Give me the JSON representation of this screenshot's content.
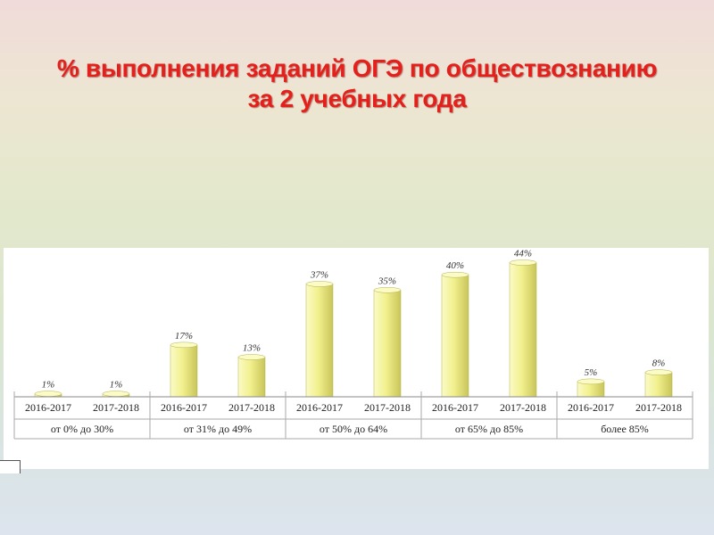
{
  "title": {
    "line1": "% выполнения заданий ОГЭ по обществознанию",
    "line2": "за 2 учебных года"
  },
  "colors": {
    "title": "#e3201b",
    "bar_light": "#fbfbc6",
    "bar_mid": "#f2f08e",
    "bar_dark": "#c9c55a"
  },
  "chart_data": {
    "type": "bar",
    "title": "% выполнения заданий ОГЭ по обществознанию за 2 учебных года",
    "groups": [
      "от 0% до 30%",
      "от 31% до 49%",
      "от 50% до 64%",
      "от 65% до 85%",
      "более 85%"
    ],
    "categories": [
      "2016-2017",
      "2017-2018",
      "2016-2017",
      "2017-2018",
      "2016-2017",
      "2017-2018",
      "2016-2017",
      "2017-2018",
      "2016-2017",
      "2017-2018"
    ],
    "values": [
      1,
      1,
      17,
      13,
      37,
      35,
      40,
      44,
      5,
      8
    ],
    "data_labels": [
      "1%",
      "1%",
      "17%",
      "13%",
      "37%",
      "35%",
      "40%",
      "44%",
      "5%",
      "8%"
    ],
    "ylim": [
      0,
      50
    ],
    "grid": false,
    "legend": "none"
  }
}
